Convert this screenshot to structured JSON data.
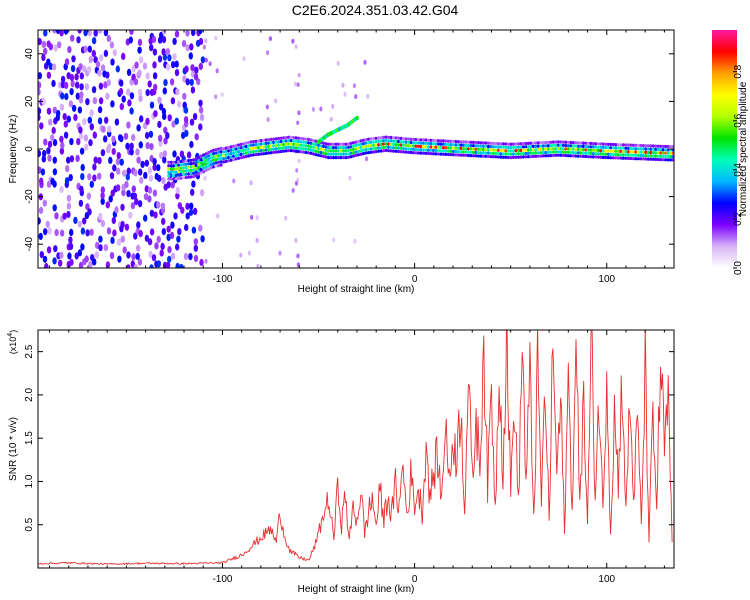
{
  "title": "C2E6.2024.351.03.42.G04",
  "chart_data": [
    {
      "type": "heatmap",
      "xlabel": "Height of straight line (km)",
      "ylabel": "Frequency (Hz)",
      "xlim": [
        -196,
        135
      ],
      "ylim": [
        -50,
        50
      ],
      "xticks": [
        -100,
        0,
        100
      ],
      "yticks": [
        -40,
        -20,
        0,
        20,
        40
      ],
      "grid": false,
      "colorbar": {
        "label": "Normalized spectral amplitude",
        "range": [
          0,
          0.97
        ],
        "ticks": [
          0.0,
          0.2,
          0.4,
          0.6,
          0.8
        ],
        "tick_labels": [
          "0.0",
          "0.2",
          "0.4",
          "0.6",
          "0.8"
        ],
        "colors": [
          "#ffffff",
          "#d8b4f6",
          "#7b00ff",
          "#0000ff",
          "#00b8ff",
          "#00ffb8",
          "#00e400",
          "#b4ff00",
          "#ffff00",
          "#ffa000",
          "#ff0000",
          "#ff1aa0"
        ]
      },
      "ridge": {
        "description_free": true,
        "x": [
          -125,
          -115,
          -105,
          -95,
          -85,
          -75,
          -65,
          -55,
          -45,
          -35,
          -25,
          -15,
          0,
          25,
          50,
          75,
          100,
          133
        ],
        "y": [
          -9,
          -8,
          -4,
          -2,
          0,
          1,
          2,
          1,
          -1,
          -1,
          1,
          2,
          1,
          0,
          -1,
          0,
          -1,
          -2
        ]
      },
      "secondary_track": {
        "x": [
          -50,
          -45,
          -40,
          -35,
          -30
        ],
        "y": [
          3,
          6,
          8,
          10,
          13
        ]
      }
    },
    {
      "type": "line",
      "xlabel": "Height of straight line (km)",
      "ylabel": "SNR (10 * v/v)",
      "y_scale_label": "(x10",
      "y_scale_exponent": "4",
      "y_scale_suffix": ")",
      "xlim": [
        -196,
        135
      ],
      "ylim": [
        0,
        27500
      ],
      "xticks": [
        -100,
        0,
        100
      ],
      "yticks": [
        5000,
        10000,
        15000,
        20000,
        25000
      ],
      "ytick_labels": [
        "0.5",
        "1.0",
        "1.5",
        "2.0",
        "2.5"
      ],
      "grid": false,
      "color": "#e83030",
      "series": [
        {
          "x": [
            -196,
            -180,
            -160,
            -140,
            -120,
            -100,
            -90,
            -85,
            -80,
            -75,
            -72,
            -70,
            -68,
            -65,
            -60,
            -55,
            -52,
            -50,
            -45,
            -42,
            -40,
            -38,
            -36,
            -34,
            -32,
            -30,
            -28,
            -26,
            -24,
            -22,
            -20,
            -18,
            -16,
            -14,
            -12,
            -10,
            -8,
            -6,
            -4,
            -2,
            0,
            2,
            4,
            6,
            8,
            10,
            12,
            14,
            16,
            18,
            20,
            22,
            24,
            26,
            28,
            30,
            32,
            34,
            36,
            38,
            40,
            42,
            44,
            46,
            48,
            50,
            52,
            54,
            56,
            58,
            60,
            62,
            64,
            66,
            68,
            70,
            72,
            74,
            76,
            78,
            80,
            82,
            84,
            86,
            88,
            90,
            92,
            94,
            96,
            98,
            100,
            102,
            104,
            106,
            108,
            110,
            112,
            114,
            116,
            118,
            120,
            122,
            124,
            126,
            128,
            130,
            132,
            134
          ],
          "y": [
            500,
            600,
            450,
            550,
            500,
            600,
            1500,
            2500,
            3500,
            4500,
            3000,
            6500,
            4000,
            2000,
            1200,
            900,
            2500,
            4000,
            8000,
            3500,
            9500,
            5000,
            8500,
            3000,
            7000,
            5500,
            9000,
            4000,
            6500,
            8000,
            5000,
            9000,
            5500,
            8500,
            6000,
            9500,
            7000,
            12000,
            6000,
            10500,
            7500,
            9000,
            6500,
            14500,
            8000,
            11000,
            13000,
            7500,
            18000,
            9500,
            15500,
            12500,
            19000,
            7000,
            22000,
            10000,
            17000,
            12000,
            27000,
            9000,
            21000,
            6500,
            24500,
            11000,
            27500,
            8500,
            20000,
            7000,
            26500,
            9500,
            22000,
            6000,
            23000,
            8000,
            20500,
            5500,
            25500,
            11000,
            19000,
            4500,
            21500,
            7500,
            24000,
            9000,
            18500,
            5000,
            26500,
            8500,
            20000,
            6500,
            23500,
            4000,
            18000,
            10000,
            22500,
            6000,
            19500,
            8000,
            17000,
            5000,
            23000,
            3500,
            16500,
            7500,
            23500,
            14000,
            19000,
            3000
          ]
        }
      ]
    }
  ]
}
